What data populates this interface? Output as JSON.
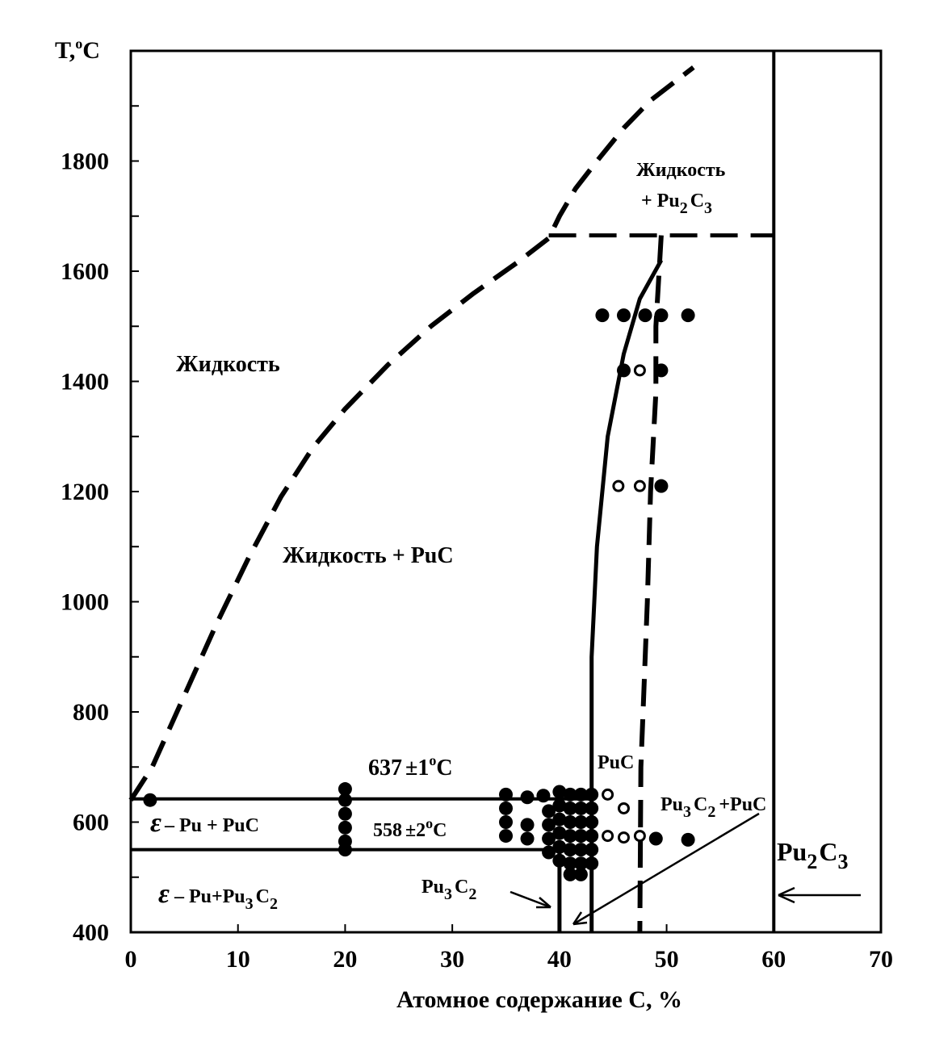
{
  "chart_data": {
    "type": "phase-diagram",
    "xlabel": "Атомное содержание C, %",
    "ylabel": "T,",
    "ylabel_sup": "o",
    "ylabel_unit": "C",
    "xlim": [
      0,
      70
    ],
    "ylim": [
      400,
      2000
    ],
    "x_ticks": [
      0,
      10,
      20,
      30,
      40,
      50,
      60,
      70
    ],
    "y_ticks_labeled": [
      400,
      600,
      800,
      1000,
      1200,
      1400,
      1600,
      1800
    ],
    "y_ticks_minor": [
      500,
      700,
      900,
      1100,
      1300,
      1500,
      1700,
      1900
    ],
    "grid": false,
    "labels": {
      "liquid": "Жидкость",
      "liquid_puc": "Жидкость + PuC",
      "liquid_pu2c3_line1": "Жидкость",
      "liquid_pu2c3_line2_a": "+ Pu",
      "liquid_pu2c3_line2_sub1": "2",
      "liquid_pu2c3_line2_b": "C",
      "liquid_pu2c3_line2_sub2": "3",
      "eutectic_a": "637",
      "eutectic_pm": "±",
      "eutectic_b": "1",
      "eutectic_sup": "o",
      "eutectic_c": "C",
      "peritectoid_a": "558",
      "peritectoid_pm": "±",
      "peritectoid_b": "2",
      "peritectoid_sup": "o",
      "peritectoid_c": "C",
      "eps_pu_puc_sym": "ε",
      "eps_pu_puc_text": "– Pu + PuC",
      "eps_pu_pu3c2_sym": "ε",
      "eps_pu_pu3c2_text_a": "– Pu+Pu",
      "eps_pu_pu3c2_sub1": "3",
      "eps_pu_pu3c2_text_b": "C",
      "eps_pu_pu3c2_sub2": "2",
      "puc": "PuC",
      "pu3c2_puc_a": "Pu",
      "pu3c2_puc_sub1": "3",
      "pu3c2_puc_b": "C",
      "pu3c2_puc_sub2": "2",
      "pu3c2_puc_c": "+PuC",
      "pu3c2_a": "Pu",
      "pu3c2_sub1": "3",
      "pu3c2_b": "C",
      "pu3c2_sub2": "2",
      "pu2c3_a": "Pu",
      "pu2c3_sub1": "2",
      "pu2c3_b": "C",
      "pu2c3_sub2": "3"
    },
    "lines": {
      "liquidus_dashed": [
        [
          0,
          640
        ],
        [
          2,
          700
        ],
        [
          5,
          830
        ],
        [
          8,
          960
        ],
        [
          11,
          1080
        ],
        [
          14,
          1190
        ],
        [
          17,
          1280
        ],
        [
          20,
          1350
        ],
        [
          24,
          1430
        ],
        [
          28,
          1500
        ],
        [
          32,
          1560
        ],
        [
          36,
          1615
        ],
        [
          39,
          1660
        ],
        [
          40,
          1700
        ],
        [
          41.5,
          1750
        ],
        [
          43.5,
          1800
        ],
        [
          46,
          1860
        ],
        [
          48.5,
          1910
        ],
        [
          52.5,
          1970
        ]
      ],
      "peritectic_dashed": [
        [
          39,
          1665
        ],
        [
          60,
          1665
        ]
      ],
      "puc_upper_boundary_dashed": [
        [
          49.5,
          1665
        ],
        [
          49,
          1500
        ],
        [
          49,
          1380
        ],
        [
          48.5,
          1200
        ],
        [
          48.2,
          1000
        ],
        [
          47.8,
          800
        ],
        [
          47.6,
          700
        ],
        [
          47.5,
          400
        ]
      ],
      "puc_lower_boundary": [
        [
          43,
          400
        ],
        [
          43,
          900
        ],
        [
          43.5,
          1100
        ],
        [
          44.5,
          1300
        ],
        [
          46,
          1450
        ],
        [
          47.5,
          1550
        ],
        [
          49.5,
          1620
        ]
      ],
      "eutectic_line": [
        [
          0,
          642
        ],
        [
          43,
          642
        ]
      ],
      "peritectoid_line": [
        [
          0,
          550
        ],
        [
          40,
          550
        ]
      ],
      "pu3c2_line": [
        [
          40,
          400
        ],
        [
          40,
          550
        ]
      ],
      "pu2c3_line": [
        [
          60,
          400
        ],
        [
          60,
          2000
        ]
      ]
    },
    "points_solid": [
      [
        1.8,
        640
      ],
      [
        20,
        660
      ],
      [
        20,
        640
      ],
      [
        20,
        615
      ],
      [
        20,
        590
      ],
      [
        20,
        565
      ],
      [
        20,
        550
      ],
      [
        35,
        650
      ],
      [
        35,
        625
      ],
      [
        35,
        600
      ],
      [
        35,
        575
      ],
      [
        37,
        645
      ],
      [
        37,
        595
      ],
      [
        37,
        570
      ],
      [
        38.5,
        648
      ],
      [
        39,
        620
      ],
      [
        39,
        595
      ],
      [
        39,
        570
      ],
      [
        39,
        545
      ],
      [
        40,
        655
      ],
      [
        40,
        630
      ],
      [
        40,
        605
      ],
      [
        40,
        580
      ],
      [
        40,
        555
      ],
      [
        40,
        530
      ],
      [
        41,
        650
      ],
      [
        41,
        625
      ],
      [
        41,
        600
      ],
      [
        41,
        575
      ],
      [
        41,
        550
      ],
      [
        41,
        525
      ],
      [
        41,
        505
      ],
      [
        42,
        650
      ],
      [
        42,
        625
      ],
      [
        42,
        600
      ],
      [
        42,
        575
      ],
      [
        42,
        550
      ],
      [
        42,
        525
      ],
      [
        42,
        505
      ],
      [
        43,
        650
      ],
      [
        43,
        625
      ],
      [
        43,
        600
      ],
      [
        43,
        575
      ],
      [
        43,
        550
      ],
      [
        43,
        525
      ],
      [
        44,
        1520
      ],
      [
        46,
        1520
      ],
      [
        48,
        1520
      ],
      [
        49.5,
        1520
      ],
      [
        52,
        1520
      ],
      [
        46,
        1420
      ],
      [
        49.5,
        1420
      ],
      [
        49.5,
        1210
      ],
      [
        49,
        570
      ],
      [
        52,
        568
      ]
    ],
    "points_open": [
      [
        44.5,
        650
      ],
      [
        46,
        625
      ],
      [
        44.5,
        575
      ],
      [
        46,
        572
      ],
      [
        47.5,
        575
      ],
      [
        47.5,
        1420
      ],
      [
        45.5,
        1210
      ],
      [
        47.5,
        1210
      ]
    ]
  }
}
